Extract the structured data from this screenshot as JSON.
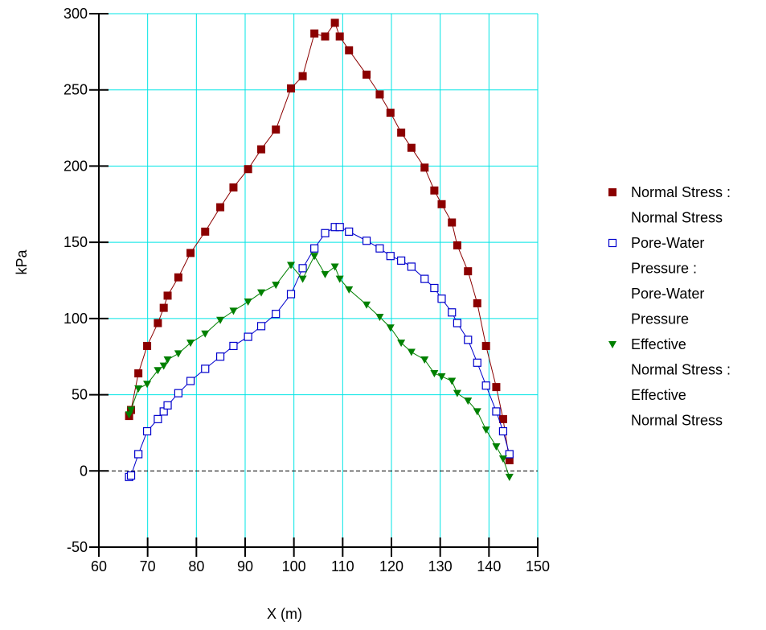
{
  "chart_data": {
    "type": "line",
    "xlabel": "X (m)",
    "ylabel": "kPa",
    "xlim": [
      60,
      150
    ],
    "ylim": [
      -50,
      300
    ],
    "xticks": [
      60,
      70,
      80,
      90,
      100,
      110,
      120,
      130,
      140,
      150
    ],
    "yticks": [
      -50,
      0,
      50,
      100,
      150,
      200,
      250,
      300
    ],
    "grid": true,
    "grid_color": "#00e5e5",
    "zero_line": "dashed",
    "legend_position": "right",
    "series": [
      {
        "name": "Normal Stress : Normal Stress",
        "legend_lines": [
          "Normal Stress :",
          "Normal Stress"
        ],
        "color": "#8b0000",
        "marker": "filled-square",
        "x": [
          66.2,
          66.6,
          68.1,
          69.9,
          72.1,
          73.3,
          74.1,
          76.3,
          78.8,
          81.8,
          84.9,
          87.6,
          90.6,
          93.3,
          96.3,
          99.4,
          101.8,
          104.2,
          106.4,
          108.4,
          109.4,
          111.3,
          114.9,
          117.6,
          119.8,
          122.0,
          124.1,
          126.8,
          128.8,
          130.3,
          132.4,
          133.5,
          135.7,
          137.6,
          139.4,
          141.5,
          142.9,
          144.2
        ],
        "y": [
          36,
          40,
          64,
          82,
          97,
          107,
          115,
          127,
          143,
          157,
          173,
          186,
          198,
          211,
          224,
          251,
          259,
          287,
          285,
          294,
          285,
          276,
          260,
          247,
          235,
          222,
          212,
          199,
          184,
          175,
          163,
          148,
          131,
          110,
          82,
          55,
          34,
          7
        ]
      },
      {
        "name": "Pore-Water Pressure : Pore-Water Pressure",
        "legend_lines": [
          "Pore-Water",
          "Pressure :",
          "Pore-Water",
          "Pressure"
        ],
        "color": "#0000cc",
        "marker": "open-square",
        "x": [
          66.2,
          66.6,
          68.1,
          69.9,
          72.1,
          73.3,
          74.1,
          76.3,
          78.8,
          81.8,
          84.9,
          87.6,
          90.6,
          93.3,
          96.3,
          99.4,
          101.8,
          104.2,
          106.4,
          108.4,
          109.4,
          111.3,
          114.9,
          117.6,
          119.8,
          122.0,
          124.1,
          126.8,
          128.8,
          130.3,
          132.4,
          133.5,
          135.7,
          137.6,
          139.4,
          141.5,
          142.9,
          144.2
        ],
        "y": [
          -4,
          -3,
          11,
          26,
          34,
          39,
          43,
          51,
          59,
          67,
          75,
          82,
          88,
          95,
          103,
          116,
          133,
          146,
          156,
          160,
          160,
          157,
          151,
          146,
          141,
          138,
          134,
          126,
          120,
          113,
          104,
          97,
          86,
          71,
          56,
          39,
          26,
          11
        ]
      },
      {
        "name": "Effective Normal Stress : Effective Normal Stress",
        "legend_lines": [
          "Effective",
          "Normal Stress :",
          "Effective",
          "Normal Stress"
        ],
        "color": "#008000",
        "marker": "filled-triangle-down",
        "x": [
          66.2,
          66.6,
          68.1,
          69.9,
          72.1,
          73.3,
          74.1,
          76.3,
          78.8,
          81.8,
          84.9,
          87.6,
          90.6,
          93.3,
          96.3,
          99.4,
          101.8,
          104.2,
          106.4,
          108.4,
          109.4,
          111.3,
          114.9,
          117.6,
          119.8,
          122.0,
          124.1,
          126.8,
          128.8,
          130.3,
          132.4,
          133.5,
          135.7,
          137.6,
          139.4,
          141.5,
          142.9,
          144.2
        ],
        "y": [
          37,
          40,
          54,
          57,
          66,
          69,
          73,
          77,
          84,
          90,
          99,
          105,
          111,
          117,
          122,
          135,
          126,
          141,
          129,
          134,
          126,
          119,
          109,
          101,
          94,
          84,
          78,
          73,
          64,
          62,
          59,
          51,
          46,
          39,
          27,
          16,
          8,
          -4
        ]
      }
    ]
  }
}
